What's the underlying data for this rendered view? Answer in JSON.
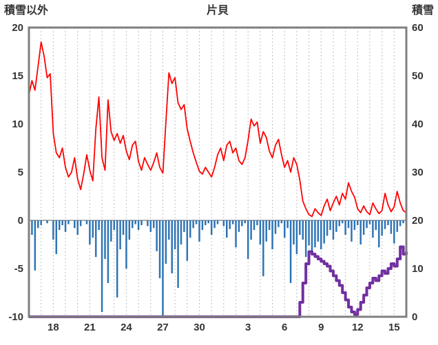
{
  "header": {
    "left_axis_title": "積雪以外",
    "chart_title": "片貝",
    "right_axis_title": "積雪"
  },
  "colors": {
    "temperature": "#FF0000",
    "precipitation": "#2E74B5",
    "snow_depth": "#7030A0",
    "frame": "#7F7F7F",
    "gridline": "#BFBFBF",
    "zero_line": "#595959",
    "text": "#333333"
  },
  "chart_data": {
    "type": "line",
    "title": "片貝",
    "x": {
      "unit": "day",
      "start": 0,
      "end": 31,
      "sample_step_days": 0.25,
      "tick_positions_days": [
        2,
        5,
        8,
        11,
        14,
        18,
        21,
        24,
        27,
        30
      ],
      "tick_labels": [
        "18",
        "21",
        "24",
        "27",
        "30",
        "3",
        "6",
        "9",
        "12",
        "15"
      ],
      "gridlines_every_days": 1
    },
    "left_axis": {
      "label": "積雪以外",
      "min": -10,
      "max": 20,
      "tick_values": [
        20,
        15,
        10,
        5,
        0,
        -5,
        -10
      ]
    },
    "right_axis": {
      "label": "積雪",
      "min": 0,
      "max": 60,
      "tick_values": [
        60,
        50,
        40,
        30,
        20,
        10,
        0
      ]
    },
    "series": [
      {
        "name": "red_line",
        "type": "line",
        "axis": "left",
        "color_key": "temperature",
        "values": [
          13.0,
          14.5,
          13.5,
          16.0,
          18.5,
          17.0,
          14.8,
          15.2,
          9.0,
          7.0,
          6.5,
          7.5,
          5.5,
          4.5,
          5.0,
          6.5,
          4.3,
          3.2,
          4.8,
          6.8,
          5.2,
          4.1,
          9.5,
          12.8,
          6.5,
          5.2,
          12.5,
          9.2,
          8.3,
          9.0,
          8.0,
          8.8,
          7.2,
          6.3,
          7.8,
          8.2,
          6.1,
          5.2,
          6.5,
          5.8,
          5.2,
          6.0,
          7.0,
          5.5,
          4.9,
          10.2,
          15.3,
          14.2,
          14.8,
          12.2,
          11.5,
          12.0,
          9.5,
          8.2,
          7.0,
          6.0,
          5.1,
          4.8,
          5.5,
          5.0,
          4.5,
          5.5,
          6.8,
          7.5,
          6.2,
          7.8,
          8.2,
          7.0,
          7.5,
          6.2,
          5.8,
          6.5,
          8.3,
          10.5,
          9.8,
          10.2,
          8.0,
          9.2,
          8.6,
          7.2,
          6.5,
          7.8,
          8.4,
          6.8,
          5.5,
          6.2,
          5.0,
          6.5,
          5.8,
          4.2,
          2.0,
          1.2,
          0.6,
          0.4,
          1.2,
          0.8,
          0.5,
          1.5,
          2.2,
          1.0,
          1.8,
          2.5,
          1.6,
          2.8,
          2.2,
          3.9,
          3.0,
          2.4,
          1.2,
          0.8,
          1.5,
          0.9,
          0.6,
          1.8,
          1.2,
          0.7,
          1.0,
          2.8,
          1.6,
          0.9,
          1.4,
          3.0,
          1.8,
          1.0,
          0.8
        ]
      },
      {
        "name": "blue_bars",
        "type": "bar",
        "axis": "left",
        "direction": "down",
        "color_key": "precipitation",
        "values": [
          0,
          1.5,
          5.2,
          0.8,
          0.5,
          0,
          0.3,
          0,
          2.0,
          3.5,
          1.0,
          0.5,
          1.2,
          0.4,
          0,
          0.8,
          1.5,
          0.6,
          0,
          0.4,
          2.5,
          1.8,
          3.8,
          1.0,
          9.5,
          4.0,
          6.5,
          2.2,
          1.0,
          8.0,
          3.0,
          1.5,
          5.0,
          2.0,
          0.8,
          0.4,
          1.0,
          0.5,
          0,
          0.6,
          1.2,
          0.8,
          3.2,
          6.0,
          10.0,
          4.5,
          2.0,
          5.5,
          3.0,
          7.0,
          2.5,
          1.2,
          4.2,
          1.8,
          0.8,
          0.4,
          2.2,
          1.0,
          0.5,
          0.3,
          1.5,
          0.8,
          0.4,
          0,
          0.6,
          1.8,
          0.9,
          0.4,
          2.8,
          1.2,
          0.6,
          0.3,
          4.0,
          2.0,
          1.0,
          0.5,
          2.5,
          5.8,
          2.2,
          1.0,
          3.0,
          1.4,
          0.7,
          0.3,
          1.8,
          0.8,
          6.5,
          2.5,
          3.5,
          1.5,
          2.0,
          3.8,
          2.6,
          3.4,
          2.8,
          2.2,
          3.0,
          2.4,
          1.6,
          1.0,
          2.0,
          1.2,
          0.6,
          0.3,
          1.5,
          0.8,
          2.2,
          1.0,
          0.5,
          2.5,
          1.5,
          0.8,
          0.4,
          1.8,
          1.0,
          2.8,
          1.6,
          0.9,
          0.5,
          1.4,
          2.4,
          1.2,
          0.6,
          0.3,
          0.2
        ]
      },
      {
        "name": "purple_line",
        "type": "step",
        "axis": "right",
        "color_key": "snow_depth",
        "values": [
          0,
          0,
          0,
          0,
          0,
          0,
          0,
          0,
          0,
          0,
          0,
          0,
          0,
          0,
          0,
          0,
          0,
          0,
          0,
          0,
          0,
          0,
          0,
          0,
          0,
          0,
          0,
          0,
          0,
          0,
          0,
          0,
          0,
          0,
          0,
          0,
          0,
          0,
          0,
          0,
          0,
          0,
          0,
          0,
          0,
          0,
          0,
          0,
          0,
          0,
          0,
          0,
          0,
          0,
          0,
          0,
          0,
          0,
          0,
          0,
          0,
          0,
          0,
          0,
          0,
          0,
          0,
          0,
          0,
          0,
          0,
          0,
          0,
          0,
          0,
          0,
          0,
          0,
          0,
          0,
          0,
          0,
          0,
          0,
          0,
          0,
          0,
          0,
          0,
          3,
          7,
          11,
          13.5,
          13,
          12.5,
          12,
          11.5,
          11,
          10.5,
          9.5,
          8.5,
          7.5,
          6.5,
          5.0,
          3.5,
          2.0,
          1.0,
          0.5,
          1.5,
          3.0,
          4.5,
          6.0,
          7.0,
          8.0,
          7.5,
          8.5,
          9.5,
          9.0,
          10.0,
          11.0,
          10.5,
          12.0,
          14.5,
          13.0,
          13.5
        ]
      }
    ]
  }
}
